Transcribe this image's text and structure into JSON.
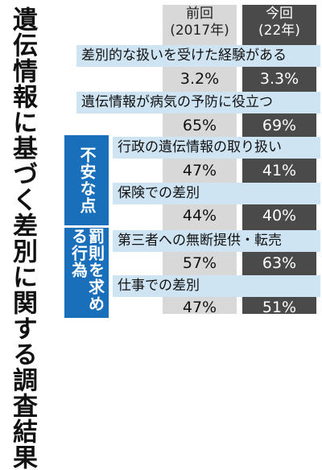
{
  "title": "遺伝情報に基づく差別に関する調査結果",
  "header": {
    "prev_label": "前回",
    "prev_sub": "(2017年)",
    "cur_label": "今回",
    "cur_sub": "(22年)"
  },
  "groups": {
    "anxiety": "不安な点",
    "penalty": "罰則を求める行為"
  },
  "colors": {
    "band": "#cfe4f3",
    "group": "#1a6fba",
    "prev_col": "#d8d8d8",
    "cur_col": "#4a4a4a"
  },
  "rows": [
    {
      "label": "差別的な扱いを受けた経験がある",
      "prev": "3.2%",
      "cur": "3.3%"
    },
    {
      "label": "遺伝情報が病気の予防に役立つ",
      "prev": "65%",
      "cur": "69%"
    },
    {
      "label": "行政の遺伝情報の取り扱い",
      "prev": "47%",
      "cur": "41%"
    },
    {
      "label": "保険での差別",
      "prev": "44%",
      "cur": "40%"
    },
    {
      "label": "第三者への無断提供・転売",
      "prev": "57%",
      "cur": "63%"
    },
    {
      "label": "仕事での差別",
      "prev": "47%",
      "cur": "51%"
    }
  ],
  "chart_data": {
    "type": "table",
    "title": "遺伝情報に基づく差別に関する調査結果",
    "columns": [
      "前回(2017年)",
      "今回(22年)"
    ],
    "categories": [
      "差別的な扱いを受けた経験がある",
      "遺伝情報が病気の予防に役立つ",
      "行政の遺伝情報の取り扱い",
      "保険での差別",
      "第三者への無断提供・転売",
      "仕事での差別"
    ],
    "series": [
      {
        "name": "前回(2017年)",
        "values": [
          3.2,
          65,
          47,
          44,
          57,
          47
        ]
      },
      {
        "name": "今回(22年)",
        "values": [
          3.3,
          69,
          41,
          40,
          63,
          51
        ]
      }
    ]
  }
}
